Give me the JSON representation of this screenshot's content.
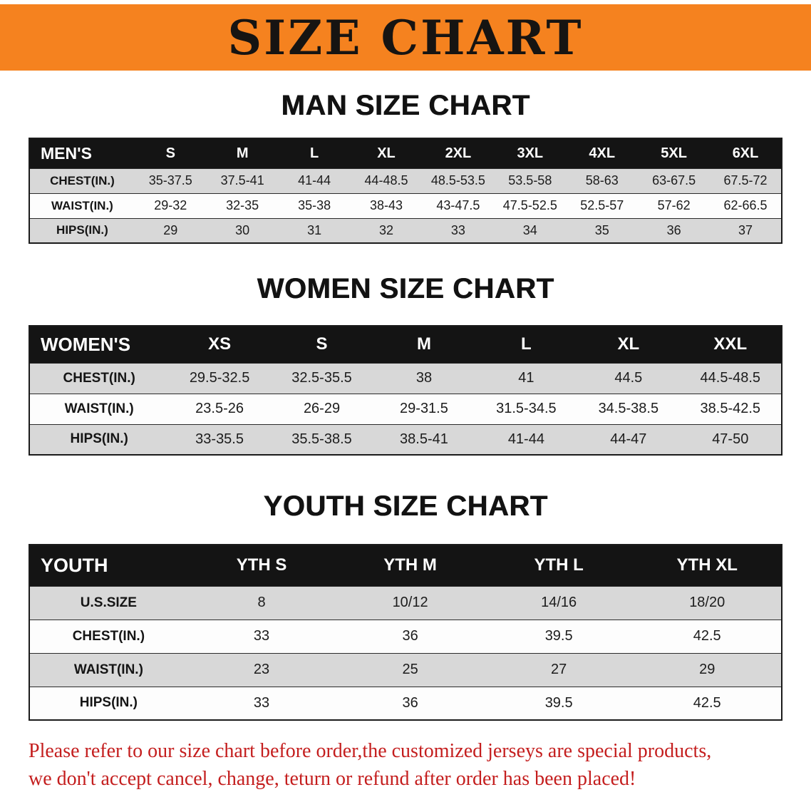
{
  "banner": {
    "title": "SIZE CHART"
  },
  "colors": {
    "banner_bg": "#f5821f",
    "header_bg": "#141414",
    "row_alt": "#d8d8d8",
    "row_main": "#fdfdfd",
    "table_border": "#1b1b1b",
    "notice_red": "#c41e1e"
  },
  "chart_data": [
    {
      "type": "table",
      "title": "MAN SIZE CHART",
      "header": [
        "MEN'S",
        "S",
        "M",
        "L",
        "XL",
        "2XL",
        "3XL",
        "4XL",
        "5XL",
        "6XL"
      ],
      "rows": [
        [
          "CHEST(IN.)",
          "35-37.5",
          "37.5-41",
          "41-44",
          "44-48.5",
          "48.5-53.5",
          "53.5-58",
          "58-63",
          "63-67.5",
          "67.5-72"
        ],
        [
          "WAIST(IN.)",
          "29-32",
          "32-35",
          "35-38",
          "38-43",
          "43-47.5",
          "47.5-52.5",
          "52.5-57",
          "57-62",
          "62-66.5"
        ],
        [
          "HIPS(IN.)",
          "29",
          "30",
          "31",
          "32",
          "33",
          "34",
          "35",
          "36",
          "37"
        ]
      ]
    },
    {
      "type": "table",
      "title": "WOMEN SIZE CHART",
      "header": [
        "WOMEN'S",
        "XS",
        "S",
        "M",
        "L",
        "XL",
        "XXL"
      ],
      "rows": [
        [
          "CHEST(IN.)",
          "29.5-32.5",
          "32.5-35.5",
          "38",
          "41",
          "44.5",
          "44.5-48.5"
        ],
        [
          "WAIST(IN.)",
          "23.5-26",
          "26-29",
          "29-31.5",
          "31.5-34.5",
          "34.5-38.5",
          "38.5-42.5"
        ],
        [
          "HIPS(IN.)",
          "33-35.5",
          "35.5-38.5",
          "38.5-41",
          "41-44",
          "44-47",
          "47-50"
        ]
      ]
    },
    {
      "type": "table",
      "title": "YOUTH SIZE CHART",
      "header": [
        "YOUTH",
        "YTH S",
        "YTH M",
        "YTH L",
        "YTH XL"
      ],
      "rows": [
        [
          "U.S.SIZE",
          "8",
          "10/12",
          "14/16",
          "18/20"
        ],
        [
          "CHEST(IN.)",
          "33",
          "36",
          "39.5",
          "42.5"
        ],
        [
          "WAIST(IN.)",
          "23",
          "25",
          "27",
          "29"
        ],
        [
          "HIPS(IN.)",
          "33",
          "36",
          "39.5",
          "42.5"
        ]
      ]
    }
  ],
  "footer": {
    "line1": "Please refer to our size chart before order,the customized jerseys are special products,",
    "line2": "we don't accept cancel, change, teturn or refund after order has been placed!"
  }
}
